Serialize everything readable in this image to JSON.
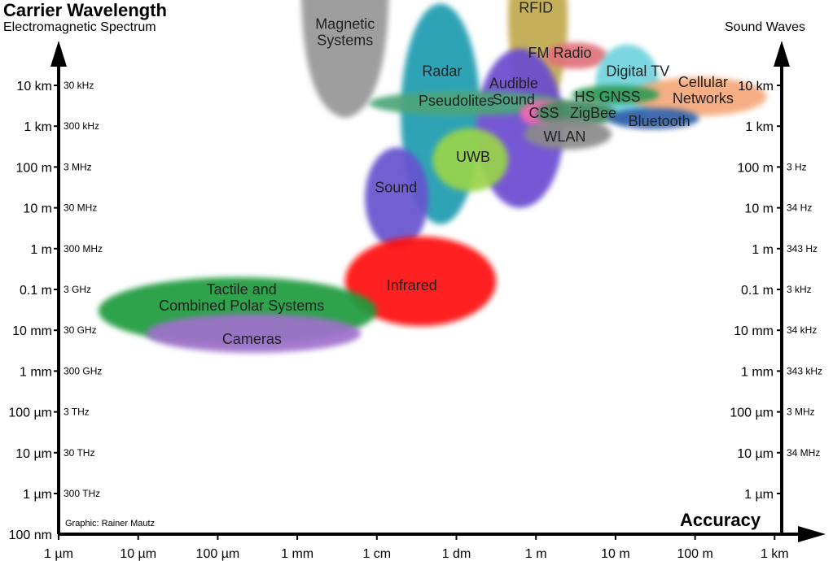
{
  "chart_data": {
    "type": "ellipse-region-map",
    "title": "Carrier Wavelength",
    "subtitle": "Electromagnetic Spectrum",
    "right_axis_title": "Sound Waves",
    "xlabel": "Accuracy",
    "credit": "Graphic: Rainer Mautz",
    "x_ticks": [
      "1 µm",
      "10 µm",
      "100 µm",
      "1 mm",
      "1 cm",
      "1 dm",
      "1 m",
      "10 m",
      "100 m",
      "1 km"
    ],
    "y_ticks_left": [
      "10 km",
      "1 km",
      "100 m",
      "10 m",
      "1 m",
      "0.1 m",
      "10 mm",
      "1 mm",
      "100 µm",
      "10 µm",
      "1 µm",
      "100 nm"
    ],
    "y_freq_em": [
      "30 kHz",
      "300 kHz",
      "3 MHz",
      "30 MHz",
      "300 MHz",
      "3 GHz",
      "30 GHz",
      "300 GHz",
      "3 THz",
      "30 THz",
      "300 THz"
    ],
    "y_ticks_right": [
      "10 km",
      "1 km",
      "100 m",
      "10 m",
      "1 m",
      "0.1 m",
      "10 mm",
      "1 mm",
      "100 µm",
      "10 µm",
      "1 µm"
    ],
    "y_freq_sound": [
      "",
      "",
      "3 Hz",
      "34 Hz",
      "343 Hz",
      "3 kHz",
      "34 kHz",
      "343 kHz",
      "3 MHz",
      "34 MHz",
      ""
    ],
    "regions": [
      {
        "label": [
          "Magnetic",
          "Systems"
        ],
        "shape": "cup",
        "color": "#999999",
        "x": [
          3.05,
          4.15
        ],
        "y": [
          -3.0,
          0.8
        ],
        "label_at": [
          3.6,
          -1.3
        ]
      },
      {
        "label": [
          "RFID"
        ],
        "color": "#bfa94c",
        "x": [
          5.65,
          6.4
        ],
        "y": [
          -4.0,
          0.7
        ],
        "label_at": [
          6.0,
          -1.9
        ]
      },
      {
        "label": [
          "Radar"
        ],
        "color": "#1b9bb0",
        "x": [
          4.3,
          5.3
        ],
        "y": [
          -2.0,
          3.4
        ],
        "label_at": [
          4.82,
          -0.35
        ]
      },
      {
        "label": [
          "Audible",
          "Sound"
        ],
        "color": "#6a4ad0",
        "x": [
          5.25,
          6.35
        ],
        "y": [
          -0.9,
          3.0
        ],
        "label_at": [
          5.72,
          0.15
        ]
      },
      {
        "label": [
          "FM Radio"
        ],
        "color": "#e0727a",
        "x": [
          6.1,
          6.9
        ],
        "y": [
          -1.05,
          -0.4
        ],
        "label_at": [
          6.3,
          -0.8
        ]
      },
      {
        "label": [
          "Digital TV"
        ],
        "color": "#6fd3dc",
        "x": [
          6.75,
          7.55
        ],
        "y": [
          -1.0,
          0.9
        ],
        "label_at": [
          7.28,
          -0.35
        ]
      },
      {
        "label": [
          "Cellular",
          "Networks"
        ],
        "color": "#f5a87a",
        "x": [
          7.2,
          8.9
        ],
        "y": [
          -0.2,
          0.75
        ],
        "label_at": [
          8.1,
          0.12
        ]
      },
      {
        "label": [
          "HS GNSS"
        ],
        "color": "#2a9a55",
        "x": [
          6.45,
          7.55
        ],
        "y": [
          0.0,
          0.45
        ],
        "label_at": [
          6.9,
          0.28
        ]
      },
      {
        "label": [
          "Pseudolites"
        ],
        "color": "#4da57a",
        "x": [
          3.9,
          6.35
        ],
        "y": [
          0.14,
          0.74
        ],
        "label_at": [
          5.0,
          0.38
        ]
      },
      {
        "label": [
          "CSS"
        ],
        "color": "#f06ab0",
        "x": [
          5.8,
          6.4
        ],
        "y": [
          0.35,
          1.03
        ],
        "label_at": [
          6.1,
          0.68
        ]
      },
      {
        "label": [
          "ZigBee"
        ],
        "color": "#3f8a60",
        "x": [
          6.0,
          7.0
        ],
        "y": [
          0.35,
          1.03
        ],
        "label_at": [
          6.72,
          0.68
        ]
      },
      {
        "label": [
          "Bluetooth"
        ],
        "color": "#2f5fa8",
        "x": [
          6.9,
          8.05
        ],
        "y": [
          0.55,
          1.07
        ],
        "label_at": [
          7.55,
          0.88
        ]
      },
      {
        "label": [
          "WLAN"
        ],
        "color": "#8a8a8a",
        "x": [
          5.85,
          6.95
        ],
        "y": [
          0.82,
          1.57
        ],
        "label_at": [
          6.36,
          1.25
        ]
      },
      {
        "label": [
          "UWB"
        ],
        "color": "#98d44a",
        "x": [
          4.7,
          5.65
        ],
        "y": [
          1.05,
          2.6
        ],
        "label_at": [
          5.21,
          1.75
        ]
      },
      {
        "label": [
          "Sound"
        ],
        "color": "#6652cf",
        "x": [
          3.85,
          4.65
        ],
        "y": [
          1.52,
          4.0
        ],
        "label_at": [
          4.24,
          2.5
        ]
      },
      {
        "label": [
          "Infrared"
        ],
        "color": "#ff1111",
        "x": [
          3.6,
          5.5
        ],
        "y": [
          3.7,
          5.9
        ],
        "label_at": [
          4.44,
          4.9
        ]
      },
      {
        "label": [
          "Tactile and",
          "Combined Polar Systems"
        ],
        "color": "#1f9a3c",
        "x": [
          0.5,
          4.0
        ],
        "y": [
          4.7,
          6.35
        ],
        "label_at": [
          2.3,
          5.2
        ]
      },
      {
        "label": [
          "Cameras"
        ],
        "color": "#a070cc",
        "x": [
          1.1,
          3.8
        ],
        "y": [
          5.6,
          6.55
        ],
        "label_at": [
          2.43,
          6.22
        ]
      }
    ]
  }
}
